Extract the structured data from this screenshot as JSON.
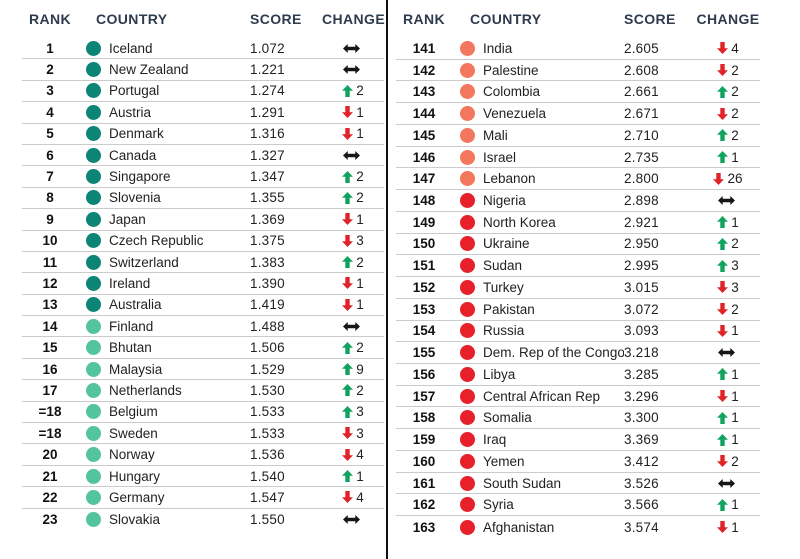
{
  "colors": {
    "teal_dark": "#0C8476",
    "teal_light": "#53C3A0",
    "salmon": "#F3775C",
    "red": "#E72029",
    "arrow_up_green": "#0FA35F",
    "arrow_down_red": "#E02229",
    "arrow_same_black": "#161616",
    "header_text": "#2F3B4E",
    "body_text": "#222222",
    "rank_text": "#111111",
    "row_line": "#CBCBCB",
    "divider": "#111111"
  },
  "chart_data": [
    {
      "type": "table",
      "name": "most_peaceful_ranks_1_to_23",
      "columns": {
        "rank": "RANK",
        "country": "COUNTRY",
        "score": "SCORE",
        "change": "CHANGE"
      },
      "rows": [
        {
          "rank": "1",
          "country": "Iceland",
          "score": "1.072",
          "change_direction": "same",
          "change_value": "",
          "dot_color": "teal_dark"
        },
        {
          "rank": "2",
          "country": "New Zealand",
          "score": "1.221",
          "change_direction": "same",
          "change_value": "",
          "dot_color": "teal_dark"
        },
        {
          "rank": "3",
          "country": "Portugal",
          "score": "1.274",
          "change_direction": "up",
          "change_value": "2",
          "dot_color": "teal_dark"
        },
        {
          "rank": "4",
          "country": "Austria",
          "score": "1.291",
          "change_direction": "down",
          "change_value": "1",
          "dot_color": "teal_dark"
        },
        {
          "rank": "5",
          "country": "Denmark",
          "score": "1.316",
          "change_direction": "down",
          "change_value": "1",
          "dot_color": "teal_dark"
        },
        {
          "rank": "6",
          "country": "Canada",
          "score": "1.327",
          "change_direction": "same",
          "change_value": "",
          "dot_color": "teal_dark"
        },
        {
          "rank": "7",
          "country": "Singapore",
          "score": "1.347",
          "change_direction": "up",
          "change_value": "2",
          "dot_color": "teal_dark"
        },
        {
          "rank": "8",
          "country": "Slovenia",
          "score": "1.355",
          "change_direction": "up",
          "change_value": "2",
          "dot_color": "teal_dark"
        },
        {
          "rank": "9",
          "country": "Japan",
          "score": "1.369",
          "change_direction": "down",
          "change_value": "1",
          "dot_color": "teal_dark"
        },
        {
          "rank": "10",
          "country": "Czech Republic",
          "score": "1.375",
          "change_direction": "down",
          "change_value": "3",
          "dot_color": "teal_dark"
        },
        {
          "rank": "11",
          "country": "Switzerland",
          "score": "1.383",
          "change_direction": "up",
          "change_value": "2",
          "dot_color": "teal_dark"
        },
        {
          "rank": "12",
          "country": "Ireland",
          "score": "1.390",
          "change_direction": "down",
          "change_value": "1",
          "dot_color": "teal_dark"
        },
        {
          "rank": "13",
          "country": "Australia",
          "score": "1.419",
          "change_direction": "down",
          "change_value": "1",
          "dot_color": "teal_dark"
        },
        {
          "rank": "14",
          "country": "Finland",
          "score": "1.488",
          "change_direction": "same",
          "change_value": "",
          "dot_color": "teal_light"
        },
        {
          "rank": "15",
          "country": "Bhutan",
          "score": "1.506",
          "change_direction": "up",
          "change_value": "2",
          "dot_color": "teal_light"
        },
        {
          "rank": "16",
          "country": "Malaysia",
          "score": "1.529",
          "change_direction": "up",
          "change_value": "9",
          "dot_color": "teal_light"
        },
        {
          "rank": "17",
          "country": "Netherlands",
          "score": "1.530",
          "change_direction": "up",
          "change_value": "2",
          "dot_color": "teal_light"
        },
        {
          "rank": "=18",
          "country": "Belgium",
          "score": "1.533",
          "change_direction": "up",
          "change_value": "3",
          "dot_color": "teal_light"
        },
        {
          "rank": "=18",
          "country": "Sweden",
          "score": "1.533",
          "change_direction": "down",
          "change_value": "3",
          "dot_color": "teal_light"
        },
        {
          "rank": "20",
          "country": "Norway",
          "score": "1.536",
          "change_direction": "down",
          "change_value": "4",
          "dot_color": "teal_light"
        },
        {
          "rank": "21",
          "country": "Hungary",
          "score": "1.540",
          "change_direction": "up",
          "change_value": "1",
          "dot_color": "teal_light"
        },
        {
          "rank": "22",
          "country": "Germany",
          "score": "1.547",
          "change_direction": "down",
          "change_value": "4",
          "dot_color": "teal_light"
        },
        {
          "rank": "23",
          "country": "Slovakia",
          "score": "1.550",
          "change_direction": "same",
          "change_value": "",
          "dot_color": "teal_light"
        }
      ]
    },
    {
      "type": "table",
      "name": "least_peaceful_ranks_141_to_163",
      "columns": {
        "rank": "RANK",
        "country": "COUNTRY",
        "score": "SCORE",
        "change": "CHANGE"
      },
      "rows": [
        {
          "rank": "141",
          "country": "India",
          "score": "2.605",
          "change_direction": "down",
          "change_value": "4",
          "dot_color": "salmon"
        },
        {
          "rank": "142",
          "country": "Palestine",
          "score": "2.608",
          "change_direction": "down",
          "change_value": "2",
          "dot_color": "salmon"
        },
        {
          "rank": "143",
          "country": "Colombia",
          "score": "2.661",
          "change_direction": "up",
          "change_value": "2",
          "dot_color": "salmon"
        },
        {
          "rank": "144",
          "country": "Venezuela",
          "score": "2.671",
          "change_direction": "down",
          "change_value": "2",
          "dot_color": "salmon"
        },
        {
          "rank": "145",
          "country": "Mali",
          "score": "2.710",
          "change_direction": "up",
          "change_value": "2",
          "dot_color": "salmon"
        },
        {
          "rank": "146",
          "country": "Israel",
          "score": "2.735",
          "change_direction": "up",
          "change_value": "1",
          "dot_color": "salmon"
        },
        {
          "rank": "147",
          "country": "Lebanon",
          "score": "2.800",
          "change_direction": "down",
          "change_value": "26",
          "dot_color": "salmon"
        },
        {
          "rank": "148",
          "country": "Nigeria",
          "score": "2.898",
          "change_direction": "same",
          "change_value": "",
          "dot_color": "red"
        },
        {
          "rank": "149",
          "country": "North Korea",
          "score": "2.921",
          "change_direction": "up",
          "change_value": "1",
          "dot_color": "red"
        },
        {
          "rank": "150",
          "country": "Ukraine",
          "score": "2.950",
          "change_direction": "up",
          "change_value": "2",
          "dot_color": "red"
        },
        {
          "rank": "151",
          "country": "Sudan",
          "score": "2.995",
          "change_direction": "up",
          "change_value": "3",
          "dot_color": "red"
        },
        {
          "rank": "152",
          "country": "Turkey",
          "score": "3.015",
          "change_direction": "down",
          "change_value": "3",
          "dot_color": "red"
        },
        {
          "rank": "153",
          "country": "Pakistan",
          "score": "3.072",
          "change_direction": "down",
          "change_value": "2",
          "dot_color": "red"
        },
        {
          "rank": "154",
          "country": "Russia",
          "score": "3.093",
          "change_direction": "down",
          "change_value": "1",
          "dot_color": "red"
        },
        {
          "rank": "155",
          "country": "Dem. Rep of the Congo",
          "score": "3.218",
          "change_direction": "same",
          "change_value": "",
          "dot_color": "red"
        },
        {
          "rank": "156",
          "country": "Libya",
          "score": "3.285",
          "change_direction": "up",
          "change_value": "1",
          "dot_color": "red"
        },
        {
          "rank": "157",
          "country": "Central African Rep",
          "score": "3.296",
          "change_direction": "down",
          "change_value": "1",
          "dot_color": "red"
        },
        {
          "rank": "158",
          "country": "Somalia",
          "score": "3.300",
          "change_direction": "up",
          "change_value": "1",
          "dot_color": "red"
        },
        {
          "rank": "159",
          "country": "Iraq",
          "score": "3.369",
          "change_direction": "up",
          "change_value": "1",
          "dot_color": "red"
        },
        {
          "rank": "160",
          "country": "Yemen",
          "score": "3.412",
          "change_direction": "down",
          "change_value": "2",
          "dot_color": "red"
        },
        {
          "rank": "161",
          "country": "South Sudan",
          "score": "3.526",
          "change_direction": "same",
          "change_value": "",
          "dot_color": "red"
        },
        {
          "rank": "162",
          "country": "Syria",
          "score": "3.566",
          "change_direction": "up",
          "change_value": "1",
          "dot_color": "red"
        },
        {
          "rank": "163",
          "country": "Afghanistan",
          "score": "3.574",
          "change_direction": "down",
          "change_value": "1",
          "dot_color": "red"
        }
      ]
    }
  ]
}
